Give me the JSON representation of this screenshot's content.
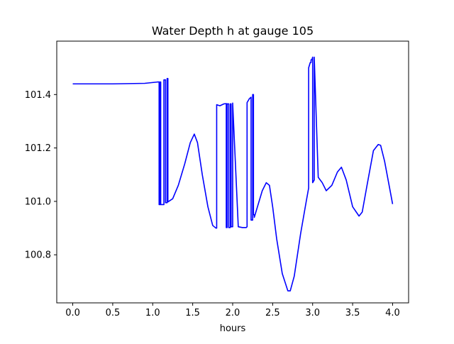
{
  "chart_data": {
    "type": "line",
    "title": "Water Depth h at gauge 105",
    "xlabel": "hours",
    "ylabel": "",
    "xlim": [
      -0.2,
      4.2
    ],
    "ylim": [
      100.62,
      101.6
    ],
    "xticks": [
      0.0,
      0.5,
      1.0,
      1.5,
      2.0,
      2.5,
      3.0,
      3.5,
      4.0
    ],
    "xtick_labels": [
      "0.0",
      "0.5",
      "1.0",
      "1.5",
      "2.0",
      "2.5",
      "3.0",
      "3.5",
      "4.0"
    ],
    "yticks": [
      100.8,
      101.0,
      101.2,
      101.4
    ],
    "ytick_labels": [
      "100.8",
      "101.0",
      "101.2",
      "101.4"
    ],
    "grid": false,
    "legend": "none",
    "series": [
      {
        "color": "#0000ff",
        "x": [
          0.0,
          0.5,
          0.9,
          1.06,
          1.07,
          1.08,
          1.08,
          1.09,
          1.09,
          1.1,
          1.1,
          1.14,
          1.14,
          1.16,
          1.16,
          1.18,
          1.18,
          1.19,
          1.19,
          1.25,
          1.32,
          1.4,
          1.47,
          1.52,
          1.56,
          1.62,
          1.69,
          1.75,
          1.79,
          1.8,
          1.8,
          1.84,
          1.89,
          1.92,
          1.92,
          1.93,
          1.93,
          1.95,
          1.95,
          1.97,
          1.97,
          1.98,
          1.98,
          2.0,
          2.0,
          2.07,
          2.12,
          2.17,
          2.18,
          2.18,
          2.21,
          2.23,
          2.23,
          2.25,
          2.25,
          2.26,
          2.26,
          2.27,
          2.27,
          2.3,
          2.37,
          2.42,
          2.46,
          2.5,
          2.55,
          2.62,
          2.69,
          2.72,
          2.77,
          2.85,
          2.92,
          2.95,
          2.95,
          2.97,
          2.98,
          2.98,
          2.99,
          3.0,
          3.0,
          3.02,
          3.02,
          3.07,
          3.12,
          3.17,
          3.24,
          3.31,
          3.36,
          3.42,
          3.5,
          3.58,
          3.62,
          3.68,
          3.76,
          3.82,
          3.85,
          3.9,
          3.95,
          4.0
        ],
        "y": [
          101.44,
          101.44,
          101.442,
          101.447,
          101.447,
          101.447,
          100.988,
          100.988,
          101.447,
          101.447,
          100.988,
          100.988,
          101.455,
          101.455,
          100.995,
          100.995,
          101.46,
          101.46,
          100.998,
          101.01,
          101.06,
          101.14,
          101.22,
          101.252,
          101.22,
          101.1,
          100.98,
          100.91,
          100.9,
          100.9,
          101.362,
          101.358,
          101.365,
          101.366,
          100.902,
          100.902,
          101.365,
          101.365,
          100.902,
          100.902,
          101.365,
          101.365,
          100.905,
          100.905,
          101.368,
          100.905,
          100.902,
          100.902,
          100.905,
          101.37,
          101.385,
          101.39,
          100.93,
          100.93,
          101.4,
          101.4,
          100.95,
          100.95,
          100.94,
          100.97,
          101.04,
          101.07,
          101.06,
          100.98,
          100.86,
          100.73,
          100.665,
          100.665,
          100.72,
          100.88,
          101.0,
          101.05,
          101.5,
          101.52,
          101.52,
          101.53,
          101.53,
          101.54,
          101.07,
          101.08,
          101.54,
          101.09,
          101.07,
          101.04,
          101.06,
          101.11,
          101.128,
          101.08,
          100.98,
          100.945,
          100.96,
          101.06,
          101.19,
          101.213,
          101.21,
          101.15,
          101.07,
          100.99
        ]
      }
    ]
  }
}
